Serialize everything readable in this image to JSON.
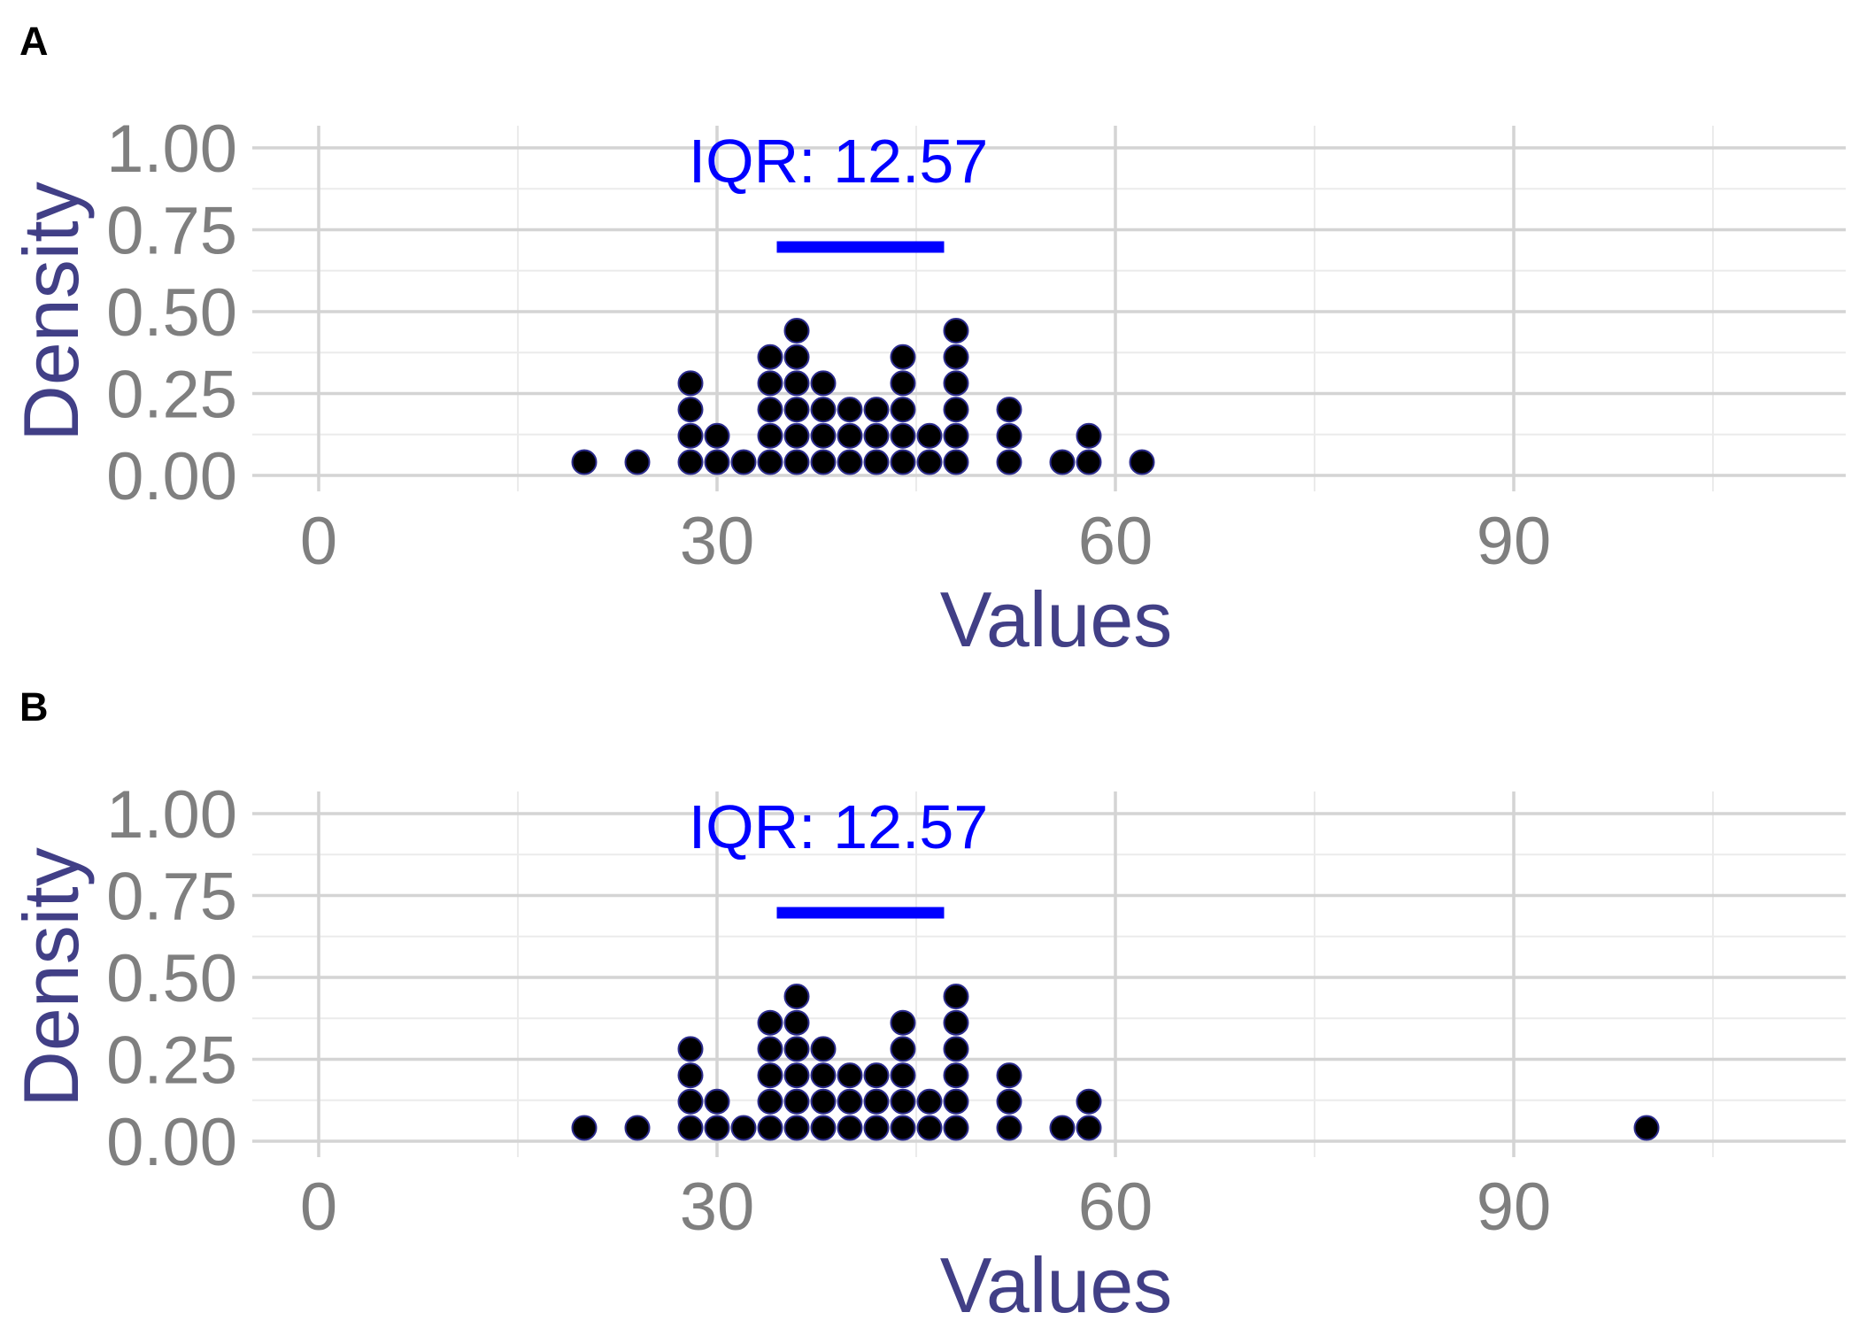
{
  "chart_data": [
    {
      "type": "dotplot",
      "panel_label": "A",
      "xlabel": "Values",
      "ylabel": "Density",
      "xlim": [
        -5,
        115
      ],
      "ylim": [
        0,
        1
      ],
      "x_ticks": [
        0,
        30,
        60,
        90
      ],
      "x_tick_labels": [
        "0",
        "30",
        "60",
        "90"
      ],
      "y_ticks": [
        0,
        0.25,
        0.5,
        0.75,
        1
      ],
      "y_tick_labels": [
        "0.00",
        "0.25",
        "0.50",
        "0.75",
        "1.00"
      ],
      "grid": true,
      "dot_color": "#000000",
      "dot_outline": "#2b2b8c",
      "annotation": {
        "text": "IQR:  12.57",
        "color": "#0000ff"
      },
      "iqr_segment": {
        "x_start": 34.5,
        "x_end": 47.1,
        "y": 0.7
      },
      "dot_columns": [
        {
          "x": 20,
          "count": 1
        },
        {
          "x": 24,
          "count": 1
        },
        {
          "x": 28,
          "count": 4
        },
        {
          "x": 30,
          "count": 2
        },
        {
          "x": 32,
          "count": 1
        },
        {
          "x": 34,
          "count": 5
        },
        {
          "x": 36,
          "count": 6
        },
        {
          "x": 38,
          "count": 4
        },
        {
          "x": 40,
          "count": 3
        },
        {
          "x": 42,
          "count": 3
        },
        {
          "x": 44,
          "count": 5
        },
        {
          "x": 46,
          "count": 2
        },
        {
          "x": 48,
          "count": 6
        },
        {
          "x": 52,
          "count": 3
        },
        {
          "x": 56,
          "count": 1
        },
        {
          "x": 58,
          "count": 2
        },
        {
          "x": 62,
          "count": 1
        }
      ]
    },
    {
      "type": "dotplot",
      "panel_label": "B",
      "xlabel": "Values",
      "ylabel": "Density",
      "xlim": [
        -5,
        115
      ],
      "ylim": [
        0,
        1
      ],
      "x_ticks": [
        0,
        30,
        60,
        90
      ],
      "x_tick_labels": [
        "0",
        "30",
        "60",
        "90"
      ],
      "y_ticks": [
        0,
        0.25,
        0.5,
        0.75,
        1
      ],
      "y_tick_labels": [
        "0.00",
        "0.25",
        "0.50",
        "0.75",
        "1.00"
      ],
      "grid": true,
      "dot_color": "#000000",
      "dot_outline": "#2b2b8c",
      "annotation": {
        "text": "IQR:  12.57",
        "color": "#0000ff"
      },
      "iqr_segment": {
        "x_start": 34.5,
        "x_end": 47.1,
        "y": 0.7
      },
      "dot_columns": [
        {
          "x": 20,
          "count": 1
        },
        {
          "x": 24,
          "count": 1
        },
        {
          "x": 28,
          "count": 4
        },
        {
          "x": 30,
          "count": 2
        },
        {
          "x": 32,
          "count": 1
        },
        {
          "x": 34,
          "count": 5
        },
        {
          "x": 36,
          "count": 6
        },
        {
          "x": 38,
          "count": 4
        },
        {
          "x": 40,
          "count": 3
        },
        {
          "x": 42,
          "count": 3
        },
        {
          "x": 44,
          "count": 5
        },
        {
          "x": 46,
          "count": 2
        },
        {
          "x": 48,
          "count": 6
        },
        {
          "x": 52,
          "count": 3
        },
        {
          "x": 56,
          "count": 1
        },
        {
          "x": 58,
          "count": 2
        },
        {
          "x": 100,
          "count": 1
        }
      ]
    }
  ]
}
